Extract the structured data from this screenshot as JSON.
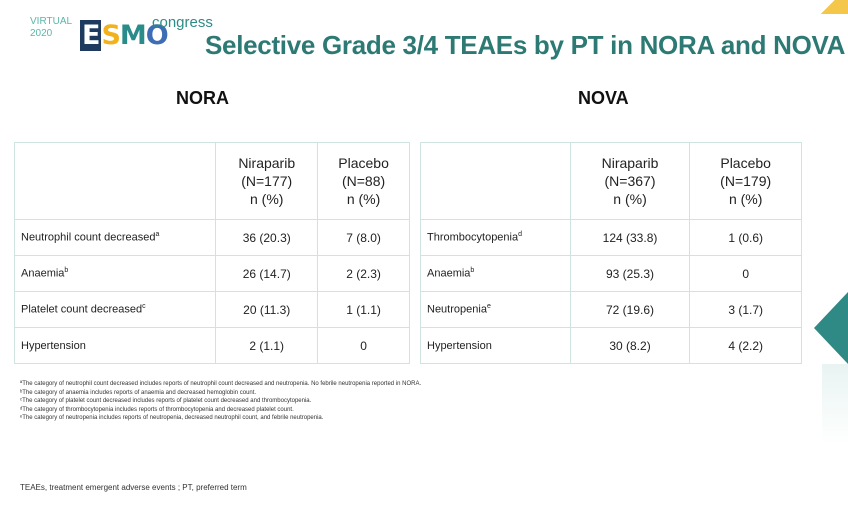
{
  "logo": {
    "virtual": "VIRTUAL",
    "year": "2020",
    "brand_e": "E",
    "brand_s": "S",
    "brand_m": "M",
    "brand_o": "O",
    "congress": "congress"
  },
  "title": "Selective Grade 3/4 TEAEs by PT in NORA and NOVA",
  "nora": {
    "heading": "NORA",
    "col1": [
      "Niraparib",
      "(N=177)",
      "n (%)"
    ],
    "col2": [
      "Placebo",
      "(N=88)",
      "n (%)"
    ],
    "rows": [
      {
        "label": "Neutrophil count decreased",
        "sup": "a",
        "v1": "36 (20.3)",
        "v2": "7 (8.0)"
      },
      {
        "label": "Anaemia",
        "sup": "b",
        "v1": "26 (14.7)",
        "v2": "2 (2.3)"
      },
      {
        "label": "Platelet count decreased",
        "sup": "c",
        "v1": "20 (11.3)",
        "v2": "1 (1.1)"
      },
      {
        "label": "Hypertension",
        "sup": "",
        "v1": "2 (1.1)",
        "v2": "0"
      }
    ]
  },
  "nova": {
    "heading": "NOVA",
    "col1": [
      "Niraparib",
      "(N=367)",
      "n (%)"
    ],
    "col2": [
      "Placebo",
      "(N=179)",
      "n (%)"
    ],
    "rows": [
      {
        "label": "Thrombocytopenia",
        "sup": "d",
        "v1": "124 (33.8)",
        "v2": "1 (0.6)"
      },
      {
        "label": "Anaemia",
        "sup": "b",
        "v1": "93 (25.3)",
        "v2": "0"
      },
      {
        "label": "Neutropenia",
        "sup": "e",
        "v1": "72 (19.6)",
        "v2": "3 (1.7)"
      },
      {
        "label": "Hypertension",
        "sup": "",
        "v1": "30 (8.2)",
        "v2": "4 (2.2)"
      }
    ]
  },
  "footnotes": [
    "ªThe category of neutrophil count decreased includes reports of neutrophil count decreased and neutropenia. No febrile neutropenia reported in NORA.",
    "ᵇThe category of anaemia includes reports of anaemia and decreased hemoglobin count.",
    "ᶜThe category of platelet count decreased includes reports of platelet count decreased and thrombocytopenia.",
    "ᵈThe category of thrombocytopenia includes reports of thrombocytopenia and decreased platelet count.",
    "ᵉThe category of neutropenia includes reports of neutropenia, decreased neutrophil count, and febrile neutropenia."
  ],
  "abbreviations": "TEAEs, treatment emergent adverse events ; PT, preferred term",
  "colors": {
    "title": "#2d7a74",
    "accent_yellow": "#f4c64a",
    "accent_teal": "#2f8a86",
    "table_border": "#cfe3e1"
  }
}
